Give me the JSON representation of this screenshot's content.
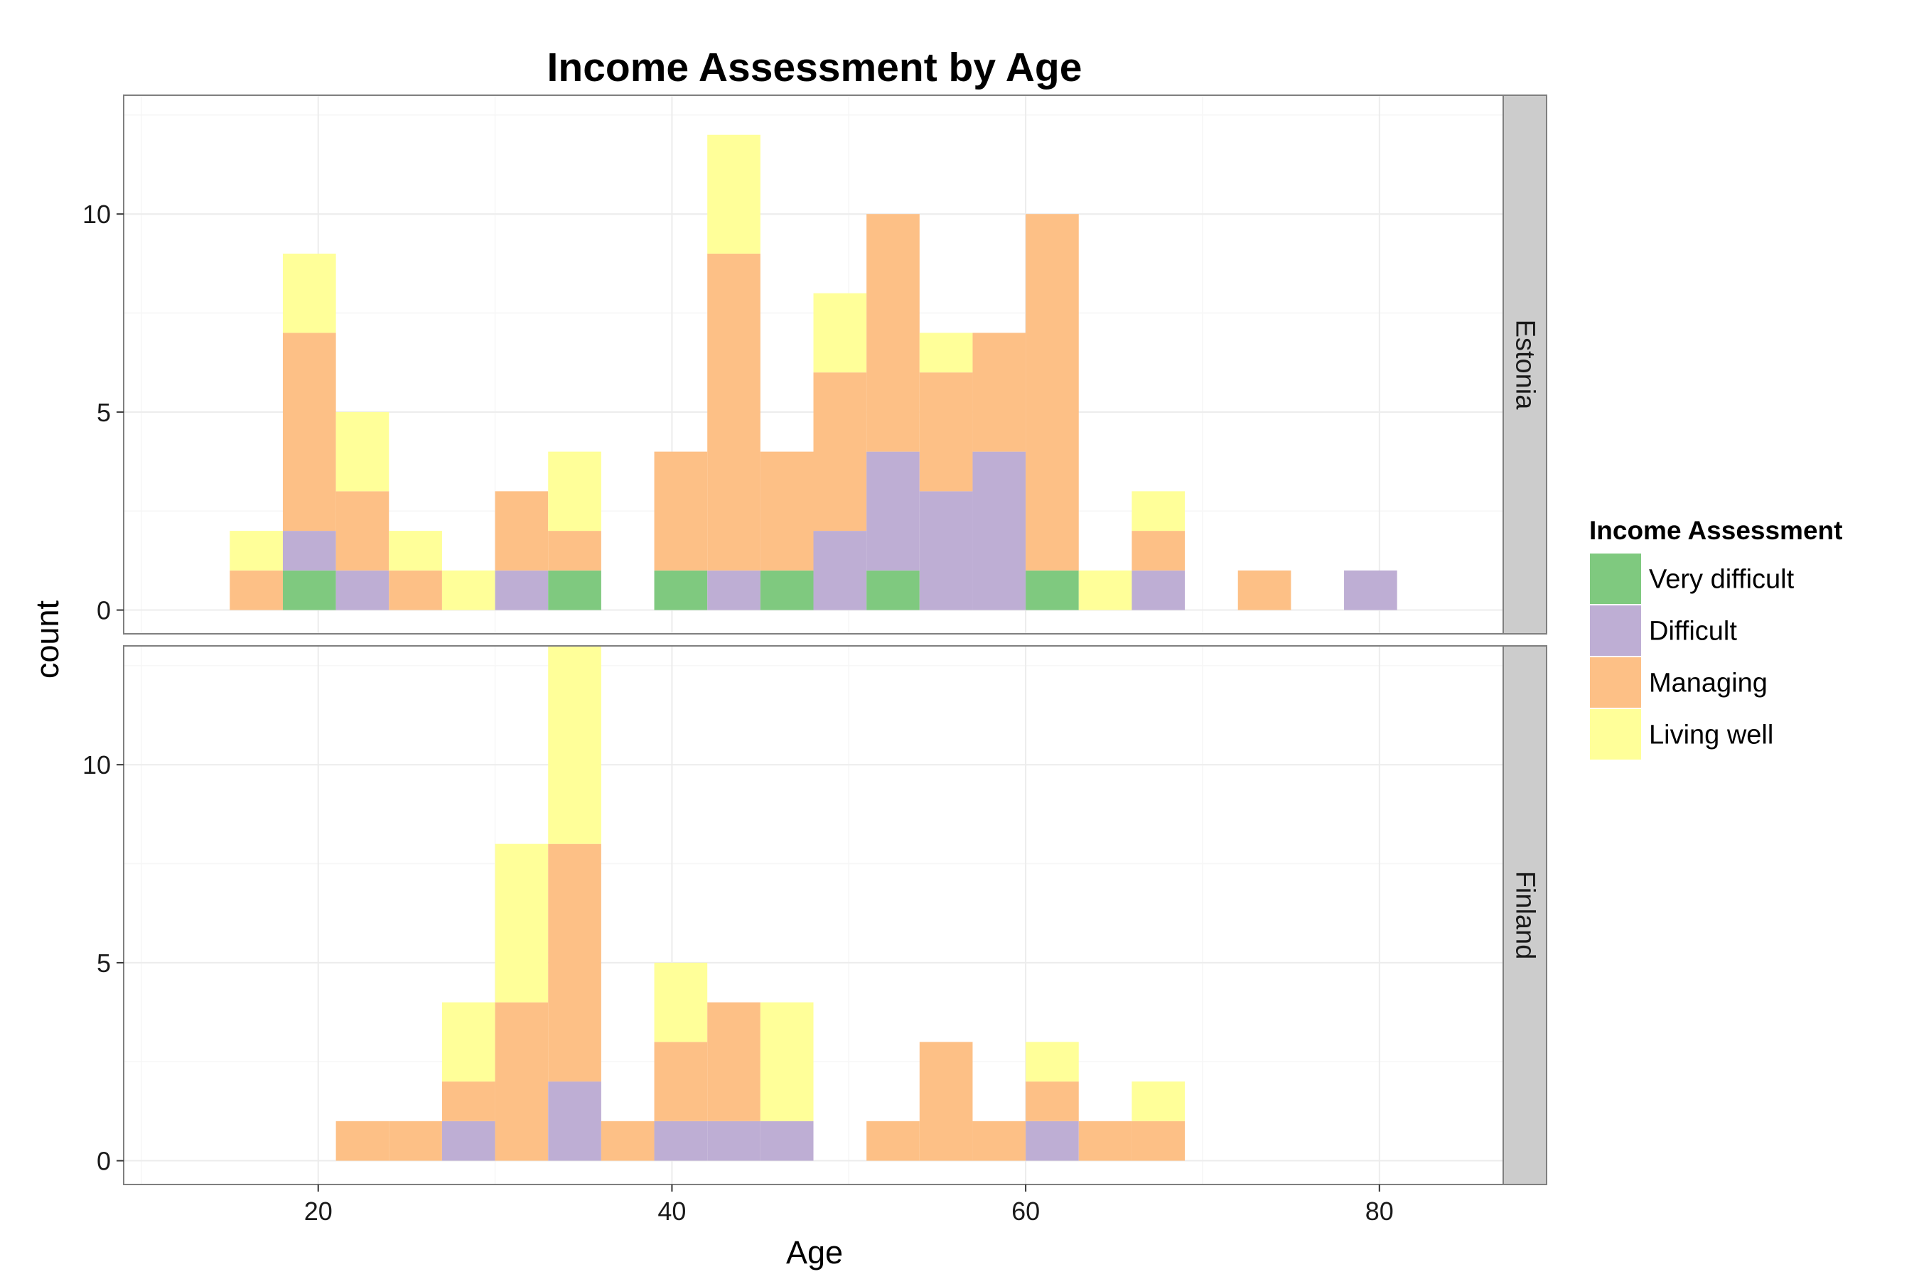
{
  "chart_data": {
    "type": "bar",
    "subtype": "stacked-histogram-faceted",
    "title": "Income Assessment by Age",
    "xlabel": "Age",
    "ylabel": "count",
    "xlim": [
      9,
      87
    ],
    "ylim": [
      -0.6,
      13.0
    ],
    "x_ticks": [
      20,
      40,
      60,
      80
    ],
    "y_ticks": [
      0,
      5,
      10
    ],
    "bin_width": 3,
    "grid": true,
    "legend": {
      "title": "Income Assessment",
      "placement": "right"
    },
    "categories_fill": [
      {
        "name": "Very difficult",
        "color": "#7fc97f"
      },
      {
        "name": "Difficult",
        "color": "#beaed4"
      },
      {
        "name": "Managing",
        "color": "#fdc086"
      },
      {
        "name": "Living well",
        "color": "#ffff99"
      }
    ],
    "panels": [
      {
        "label": "Estonia",
        "bins": [
          {
            "x_start": 15,
            "x_end": 18,
            "very_difficult": 0,
            "difficult": 0,
            "managing": 1,
            "living_well": 1
          },
          {
            "x_start": 18,
            "x_end": 21,
            "very_difficult": 1,
            "difficult": 1,
            "managing": 5,
            "living_well": 2
          },
          {
            "x_start": 21,
            "x_end": 24,
            "very_difficult": 0,
            "difficult": 1,
            "managing": 2,
            "living_well": 2
          },
          {
            "x_start": 24,
            "x_end": 27,
            "very_difficult": 0,
            "difficult": 0,
            "managing": 1,
            "living_well": 1
          },
          {
            "x_start": 27,
            "x_end": 30,
            "very_difficult": 0,
            "difficult": 0,
            "managing": 0,
            "living_well": 1
          },
          {
            "x_start": 30,
            "x_end": 33,
            "very_difficult": 0,
            "difficult": 1,
            "managing": 2,
            "living_well": 0
          },
          {
            "x_start": 33,
            "x_end": 36,
            "very_difficult": 1,
            "difficult": 0,
            "managing": 1,
            "living_well": 2
          },
          {
            "x_start": 39,
            "x_end": 42,
            "very_difficult": 1,
            "difficult": 0,
            "managing": 3,
            "living_well": 0
          },
          {
            "x_start": 42,
            "x_end": 45,
            "very_difficult": 0,
            "difficult": 1,
            "managing": 8,
            "living_well": 3
          },
          {
            "x_start": 45,
            "x_end": 48,
            "very_difficult": 1,
            "difficult": 0,
            "managing": 3,
            "living_well": 0
          },
          {
            "x_start": 48,
            "x_end": 51,
            "very_difficult": 0,
            "difficult": 2,
            "managing": 4,
            "living_well": 2
          },
          {
            "x_start": 51,
            "x_end": 54,
            "very_difficult": 1,
            "difficult": 3,
            "managing": 6,
            "living_well": 0
          },
          {
            "x_start": 54,
            "x_end": 57,
            "very_difficult": 0,
            "difficult": 3,
            "managing": 3,
            "living_well": 1
          },
          {
            "x_start": 57,
            "x_end": 60,
            "very_difficult": 0,
            "difficult": 4,
            "managing": 3,
            "living_well": 0
          },
          {
            "x_start": 60,
            "x_end": 63,
            "very_difficult": 1,
            "difficult": 0,
            "managing": 9,
            "living_well": 0
          },
          {
            "x_start": 63,
            "x_end": 66,
            "very_difficult": 0,
            "difficult": 0,
            "managing": 0,
            "living_well": 1
          },
          {
            "x_start": 66,
            "x_end": 69,
            "very_difficult": 0,
            "difficult": 1,
            "managing": 1,
            "living_well": 1
          },
          {
            "x_start": 72,
            "x_end": 75,
            "very_difficult": 0,
            "difficult": 0,
            "managing": 1,
            "living_well": 0
          },
          {
            "x_start": 78,
            "x_end": 81,
            "very_difficult": 0,
            "difficult": 1,
            "managing": 0,
            "living_well": 0
          }
        ]
      },
      {
        "label": "Finland",
        "bins": [
          {
            "x_start": 21,
            "x_end": 24,
            "very_difficult": 0,
            "difficult": 0,
            "managing": 1,
            "living_well": 0
          },
          {
            "x_start": 24,
            "x_end": 27,
            "very_difficult": 0,
            "difficult": 0,
            "managing": 1,
            "living_well": 0
          },
          {
            "x_start": 27,
            "x_end": 30,
            "very_difficult": 0,
            "difficult": 1,
            "managing": 1,
            "living_well": 2
          },
          {
            "x_start": 30,
            "x_end": 33,
            "very_difficult": 0,
            "difficult": 0,
            "managing": 4,
            "living_well": 4
          },
          {
            "x_start": 33,
            "x_end": 36,
            "very_difficult": 0,
            "difficult": 2,
            "managing": 6,
            "living_well": 5
          },
          {
            "x_start": 36,
            "x_end": 39,
            "very_difficult": 0,
            "difficult": 0,
            "managing": 1,
            "living_well": 0
          },
          {
            "x_start": 39,
            "x_end": 42,
            "very_difficult": 0,
            "difficult": 1,
            "managing": 2,
            "living_well": 2
          },
          {
            "x_start": 42,
            "x_end": 45,
            "very_difficult": 0,
            "difficult": 1,
            "managing": 3,
            "living_well": 0
          },
          {
            "x_start": 45,
            "x_end": 48,
            "very_difficult": 0,
            "difficult": 1,
            "managing": 0,
            "living_well": 3
          },
          {
            "x_start": 51,
            "x_end": 54,
            "very_difficult": 0,
            "difficult": 0,
            "managing": 1,
            "living_well": 0
          },
          {
            "x_start": 54,
            "x_end": 57,
            "very_difficult": 0,
            "difficult": 0,
            "managing": 3,
            "living_well": 0
          },
          {
            "x_start": 57,
            "x_end": 60,
            "very_difficult": 0,
            "difficult": 0,
            "managing": 1,
            "living_well": 0
          },
          {
            "x_start": 60,
            "x_end": 63,
            "very_difficult": 0,
            "difficult": 1,
            "managing": 1,
            "living_well": 1
          },
          {
            "x_start": 63,
            "x_end": 66,
            "very_difficult": 0,
            "difficult": 0,
            "managing": 1,
            "living_well": 0
          },
          {
            "x_start": 66,
            "x_end": 69,
            "very_difficult": 0,
            "difficult": 0,
            "managing": 1,
            "living_well": 1
          }
        ]
      }
    ]
  },
  "colors": {
    "panel_background": "#ffffff",
    "panel_border": "#7f7f7f",
    "grid_major": "#ececec",
    "grid_minor": "#f6f6f6",
    "strip_background": "#cccccc"
  }
}
